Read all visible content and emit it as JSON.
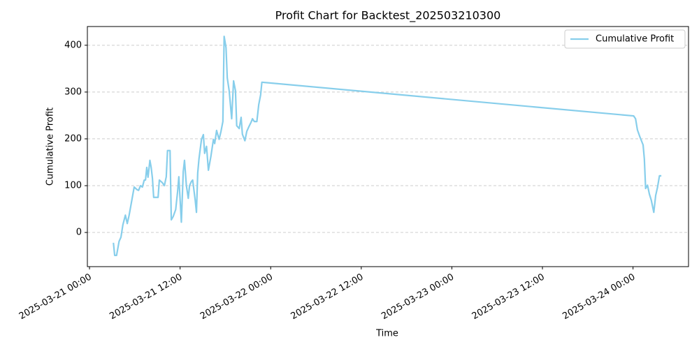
{
  "chart_data": {
    "type": "line",
    "title": "Profit Chart for Backtest_202503210300",
    "xlabel": "Time",
    "ylabel": "Cumulative Profit",
    "x": [
      "2025-03-21 03:10",
      "2025-03-21 03:20",
      "2025-03-21 03:35",
      "2025-03-21 03:55",
      "2025-03-21 04:10",
      "2025-03-21 04:25",
      "2025-03-21 04:45",
      "2025-03-21 05:00",
      "2025-03-21 05:15",
      "2025-03-21 05:35",
      "2025-03-21 05:55",
      "2025-03-21 06:20",
      "2025-03-21 06:30",
      "2025-03-21 06:45",
      "2025-03-21 07:00",
      "2025-03-21 07:15",
      "2025-03-21 07:25",
      "2025-03-21 07:35",
      "2025-03-21 07:45",
      "2025-03-21 08:00",
      "2025-03-21 08:10",
      "2025-03-21 08:20",
      "2025-03-21 08:30",
      "2025-03-21 08:40",
      "2025-03-21 09:05",
      "2025-03-21 09:15",
      "2025-03-21 09:40",
      "2025-03-21 09:55",
      "2025-03-21 10:10",
      "2025-03-21 10:20",
      "2025-03-21 10:40",
      "2025-03-21 10:50",
      "2025-03-21 11:05",
      "2025-03-21 11:25",
      "2025-03-21 11:40",
      "2025-03-21 11:50",
      "2025-03-21 12:10",
      "2025-03-21 12:25",
      "2025-03-21 12:35",
      "2025-03-21 12:50",
      "2025-03-21 13:05",
      "2025-03-21 13:15",
      "2025-03-21 13:30",
      "2025-03-21 13:40",
      "2025-03-21 14:00",
      "2025-03-21 14:10",
      "2025-03-21 14:20",
      "2025-03-21 14:30",
      "2025-03-21 14:50",
      "2025-03-21 15:05",
      "2025-03-21 15:15",
      "2025-03-21 15:30",
      "2025-03-21 15:45",
      "2025-03-21 16:05",
      "2025-03-21 16:25",
      "2025-03-21 16:35",
      "2025-03-21 16:50",
      "2025-03-21 17:10",
      "2025-03-21 17:25",
      "2025-03-21 17:40",
      "2025-03-21 17:50",
      "2025-03-21 18:05",
      "2025-03-21 18:15",
      "2025-03-21 18:30",
      "2025-03-21 18:50",
      "2025-03-21 19:05",
      "2025-03-21 19:20",
      "2025-03-21 19:30",
      "2025-03-21 19:50",
      "2025-03-21 20:05",
      "2025-03-21 20:15",
      "2025-03-21 20:35",
      "2025-03-21 20:50",
      "2025-03-21 21:05",
      "2025-03-21 21:25",
      "2025-03-21 21:35",
      "2025-03-21 21:50",
      "2025-03-21 22:10",
      "2025-03-21 22:25",
      "2025-03-21 22:40",
      "2025-03-21 22:50",
      "2025-03-24 00:05",
      "2025-03-24 00:20",
      "2025-03-24 00:35",
      "2025-03-24 00:55",
      "2025-03-24 01:20",
      "2025-03-24 01:30",
      "2025-03-24 01:40",
      "2025-03-24 01:55",
      "2025-03-24 02:10",
      "2025-03-24 02:25",
      "2025-03-24 02:45",
      "2025-03-24 03:00",
      "2025-03-24 03:15",
      "2025-03-24 03:30",
      "2025-03-24 03:45"
    ],
    "series": [
      {
        "name": "Cumulative Profit",
        "color": "#87ceeb",
        "values": [
          -22,
          -49,
          -49,
          -19,
          -10,
          16,
          37,
          19,
          37,
          67,
          97,
          91,
          90,
          100,
          97,
          112,
          112,
          139,
          118,
          154,
          139,
          116,
          75,
          75,
          75,
          112,
          106,
          100,
          119,
          175,
          175,
          27,
          34,
          49,
          87,
          119,
          22,
          130,
          154,
          100,
          73,
          100,
          109,
          112,
          69,
          43,
          127,
          157,
          199,
          209,
          169,
          184,
          133,
          163,
          199,
          190,
          218,
          199,
          216,
          237,
          419,
          395,
          330,
          303,
          243,
          324,
          303,
          228,
          222,
          246,
          210,
          196,
          216,
          225,
          236,
          243,
          237,
          237,
          273,
          294,
          321,
          249,
          243,
          219,
          204,
          187,
          157,
          94,
          101,
          82,
          69,
          43,
          79,
          97,
          121,
          121
        ]
      }
    ],
    "xlim": [
      "2025-03-20 23:43",
      "2025-03-24 07:21"
    ],
    "xticks": [
      "2025-03-21 00:00",
      "2025-03-21 12:00",
      "2025-03-22 00:00",
      "2025-03-22 12:00",
      "2025-03-23 00:00",
      "2025-03-23 12:00",
      "2025-03-24 00:00"
    ],
    "ylim": [
      -73,
      440
    ],
    "yticks": [
      0,
      100,
      200,
      300,
      400
    ],
    "grid": true,
    "legend": "upper right"
  }
}
